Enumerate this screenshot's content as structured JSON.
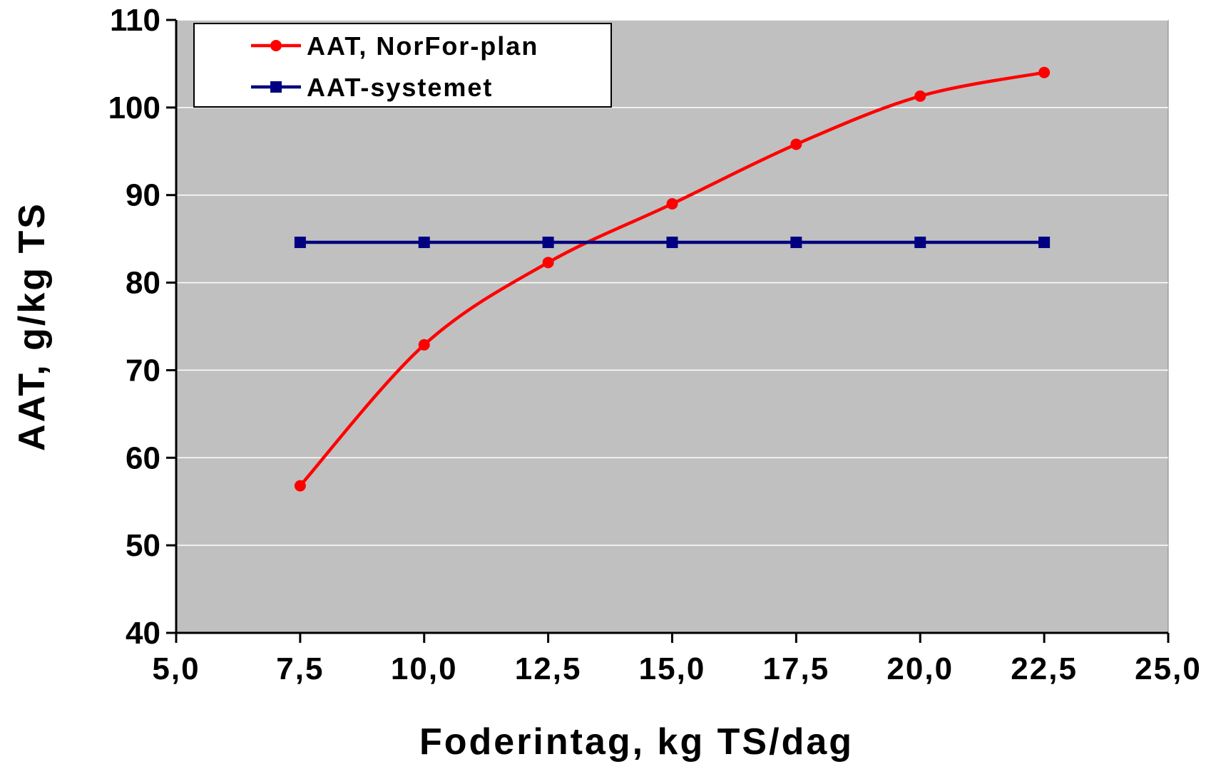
{
  "chart_data": {
    "type": "line",
    "title": "",
    "xlabel": "Foderintag, kg TS/dag",
    "ylabel": "AAT, g/kg TS",
    "xlim": [
      5.0,
      25.0
    ],
    "ylim": [
      40,
      110
    ],
    "x_ticks": [
      5.0,
      7.5,
      10.0,
      12.5,
      15.0,
      17.5,
      20.0,
      22.5,
      25.0
    ],
    "x_tick_labels": [
      "5,0",
      "7,5",
      "10,0",
      "12,5",
      "15,0",
      "17,5",
      "20,0",
      "22,5",
      "25,0"
    ],
    "y_ticks": [
      40,
      50,
      60,
      70,
      80,
      90,
      100,
      110
    ],
    "y_tick_labels": [
      "40",
      "50",
      "60",
      "70",
      "80",
      "90",
      "100",
      "110"
    ],
    "grid": "horizontal",
    "legend_position": "top-left",
    "background_color": "#c0c0c0",
    "series": [
      {
        "name": "AAT, NorFor-plan",
        "color": "#ff0000",
        "marker": "circle",
        "smooth": true,
        "x": [
          7.5,
          10.0,
          12.5,
          15.0,
          17.5,
          20.0,
          22.5
        ],
        "values": [
          56.8,
          72.9,
          82.3,
          89.0,
          95.8,
          101.3,
          104.0
        ]
      },
      {
        "name": "AAT-systemet",
        "color": "#000080",
        "marker": "square",
        "smooth": false,
        "x": [
          7.5,
          10.0,
          12.5,
          15.0,
          17.5,
          20.0,
          22.5
        ],
        "values": [
          84.6,
          84.6,
          84.6,
          84.6,
          84.6,
          84.6,
          84.6
        ]
      }
    ]
  }
}
